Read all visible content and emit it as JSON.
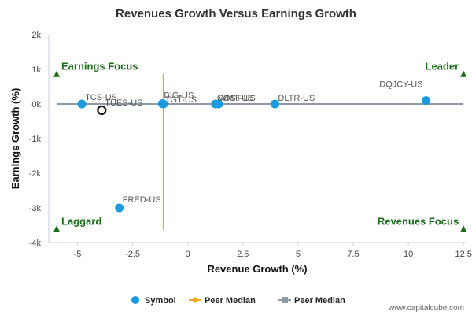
{
  "chart_data": {
    "type": "scatter",
    "title": "Revenues Growth Versus Earnings Growth",
    "xlabel": "Revenue Growth (%)",
    "ylabel": "Earnings Growth (%)",
    "xlim": [
      -6.3,
      12.6
    ],
    "ylim": [
      -4000,
      2000
    ],
    "x_ticks": [
      -5,
      -2.5,
      0,
      2.5,
      5,
      7.5,
      10,
      12.5
    ],
    "x_tick_labels": [
      "-5",
      "-2.5",
      "0",
      "2.5",
      "5",
      "7.5",
      "10",
      "12.5"
    ],
    "y_ticks": [
      2000,
      1000,
      0,
      -1000,
      -2000,
      -3000,
      -4000
    ],
    "y_tick_labels": [
      "2k",
      "1k",
      "0k",
      "-1k",
      "-2k",
      "-3k",
      "-4k"
    ],
    "points": [
      {
        "label": "TCS-US",
        "x": -4.8,
        "y": 0,
        "kind": "peer"
      },
      {
        "label": "TUES-US",
        "x": -3.9,
        "y": -180,
        "kind": "subject"
      },
      {
        "label": "FRED-US",
        "x": -3.1,
        "y": -3000,
        "kind": "peer"
      },
      {
        "label": "BIG-US",
        "x": -1.15,
        "y": 10,
        "kind": "peer"
      },
      {
        "label": "TGT-US",
        "x": -1.1,
        "y": 0,
        "kind": "peer"
      },
      {
        "label": "WMT-US",
        "x": 1.25,
        "y": 0,
        "kind": "peer"
      },
      {
        "label": "COST-US",
        "x": 1.4,
        "y": 0,
        "kind": "peer"
      },
      {
        "label": "DLTR-US",
        "x": 3.95,
        "y": 0,
        "kind": "peer"
      },
      {
        "label": "DQJCY-US",
        "x": 10.8,
        "y": 100,
        "kind": "peer"
      }
    ],
    "peer_median_revenue": -1.1,
    "peer_median_earnings": 0,
    "quadrants": {
      "top_left": "Earnings Focus",
      "top_right": "Leader",
      "bottom_left": "Laggard",
      "bottom_right": "Revenues Focus"
    },
    "legend": [
      {
        "label": "Symbol",
        "marker": "circle",
        "color": "#1a9be0"
      },
      {
        "label": "Peer Median",
        "marker": "diamond-line",
        "color": "#f5a623"
      },
      {
        "label": "Peer Median",
        "marker": "square-line",
        "color": "#8c99a6"
      }
    ],
    "legend_position": "bottom",
    "colors": {
      "point": "#1a9be0",
      "subject_stroke": "#111111",
      "median_vertical": "#f5a623",
      "median_horizontal": "#8c99a6",
      "quadrant_marker": "#1a6b1a"
    },
    "grid": false
  },
  "credit": "www.capitalcube.com"
}
